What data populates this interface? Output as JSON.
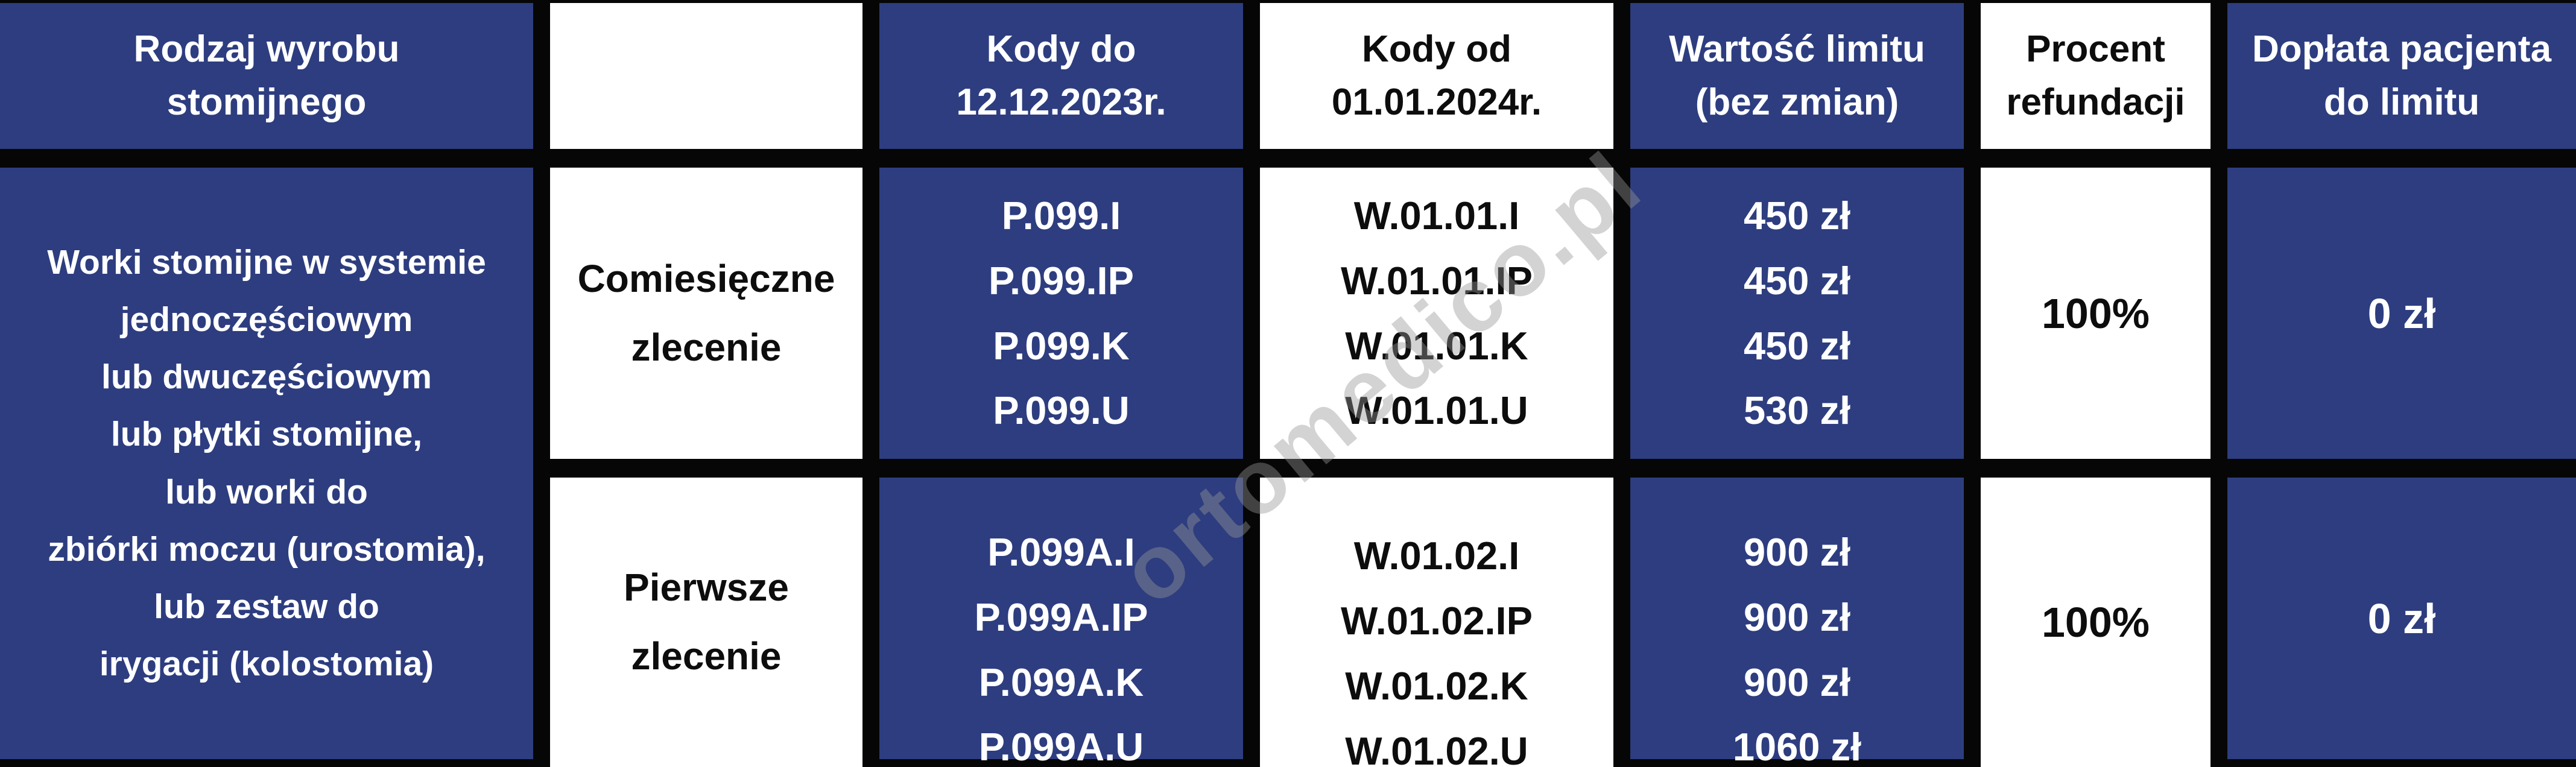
{
  "header": {
    "product_type": "Rodzaj wyrobu\nstomijnego",
    "order_col": "",
    "codes_old": "Kody do\n12.12.2023r.",
    "codes_new": "Kody od\n01.01.2024r.",
    "limit": "Wartość limitu\n(bez zmian)",
    "refund": "Procent\nrefundacji",
    "copay": "Dopłata pacjenta\ndo limitu"
  },
  "product": "Worki stomijne w systemie\njednoczęściowym\nlub dwuczęściowym\nlub płytki stomijne,\nlub worki do\nzbiórki moczu (urostomia),\nlub zestaw do\nirygacji (kolostomia)",
  "rows": [
    {
      "order_type": "Comiesięczne\nzlecenie",
      "codes_old": "P.099.I\nP.099.IP\nP.099.K\nP.099.U",
      "codes_new": "W.01.01.I\nW.01.01.IP\nW.01.01.K\nW.01.01.U",
      "limit_values": "450 zł\n450 zł\n450 zł\n530 zł",
      "refund_percent": "100%",
      "patient_copay": "0 zł"
    },
    {
      "order_type": "Pierwsze\nzlecenie",
      "codes_old": "P.099A.I\nP.099A.IP\nP.099A.K\nP.099A.U",
      "codes_new": "W.01.02.I\nW.01.02.IP\nW.01.02.K\nW.01.02.U",
      "limit_values": "900 zł\n900 zł\n900 zł\n1060 zł",
      "refund_percent": "100%",
      "patient_copay": "0 zł"
    }
  ],
  "watermark": "ortomedico.pl",
  "colors": {
    "cell_blue": "#2d3d7f",
    "border_black": "#060606",
    "text_white": "#ffffff",
    "text_black": "#0d0d0d",
    "watermark_gray": "#969696"
  }
}
